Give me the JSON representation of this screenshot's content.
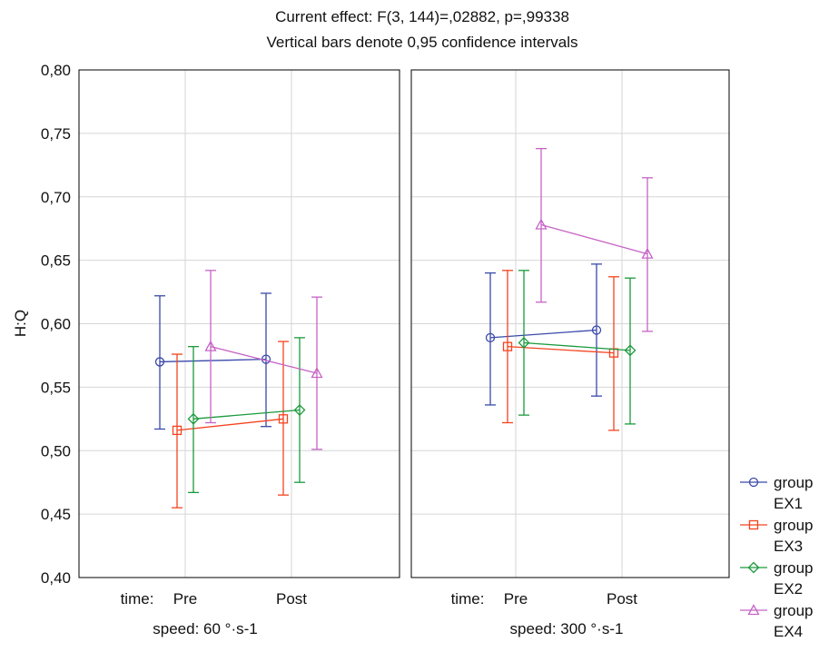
{
  "chart_data": {
    "type": "line",
    "title": "Current effect: F(3, 144)=,02882, p=,99338",
    "subtitle": "Vertical bars denote 0,95 confidence intervals",
    "ylabel": "H:Q",
    "ylim": [
      0.4,
      0.8
    ],
    "yticks": [
      "0,40",
      "0,45",
      "0,50",
      "0,55",
      "0,60",
      "0,65",
      "0,70",
      "0,75",
      "0,80"
    ],
    "x_prefix": "time:",
    "categories": [
      "Pre",
      "Post"
    ],
    "grid": true,
    "legend_position": "bottom-right",
    "panels": [
      {
        "label": "speed: 60 °·s-1",
        "series": [
          {
            "name": "group EX1",
            "values": [
              0.57,
              0.572
            ],
            "lower": [
              0.517,
              0.519
            ],
            "upper": [
              0.622,
              0.624
            ]
          },
          {
            "name": "group EX3",
            "values": [
              0.516,
              0.525
            ],
            "lower": [
              0.455,
              0.465
            ],
            "upper": [
              0.576,
              0.586
            ]
          },
          {
            "name": "group EX2",
            "values": [
              0.525,
              0.532
            ],
            "lower": [
              0.467,
              0.475
            ],
            "upper": [
              0.582,
              0.589
            ]
          },
          {
            "name": "group EX4",
            "values": [
              0.582,
              0.561
            ],
            "lower": [
              0.522,
              0.501
            ],
            "upper": [
              0.642,
              0.621
            ]
          }
        ]
      },
      {
        "label": "speed: 300 °·s-1",
        "series": [
          {
            "name": "group EX1",
            "values": [
              0.589,
              0.595
            ],
            "lower": [
              0.536,
              0.543
            ],
            "upper": [
              0.64,
              0.647
            ]
          },
          {
            "name": "group EX3",
            "values": [
              0.582,
              0.577
            ],
            "lower": [
              0.522,
              0.516
            ],
            "upper": [
              0.642,
              0.637
            ]
          },
          {
            "name": "group EX2",
            "values": [
              0.585,
              0.579
            ],
            "lower": [
              0.528,
              0.521
            ],
            "upper": [
              0.642,
              0.636
            ]
          },
          {
            "name": "group EX4",
            "values": [
              0.678,
              0.655
            ],
            "lower": [
              0.617,
              0.594
            ],
            "upper": [
              0.738,
              0.715
            ]
          }
        ]
      }
    ],
    "legend": [
      {
        "line1": "group",
        "line2": "EX1",
        "color": "#3949ab",
        "marker": "circle"
      },
      {
        "line1": "group",
        "line2": "EX3",
        "color": "#f4431f",
        "marker": "square"
      },
      {
        "line1": "group",
        "line2": "EX2",
        "color": "#1a9a3c",
        "marker": "diamond"
      },
      {
        "line1": "group",
        "line2": "EX4",
        "color": "#c663c6",
        "marker": "triangle"
      }
    ],
    "colors": [
      "#3949ab",
      "#f4431f",
      "#1a9a3c",
      "#c663c6"
    ],
    "markers": [
      "circle",
      "square",
      "diamond",
      "triangle"
    ]
  }
}
